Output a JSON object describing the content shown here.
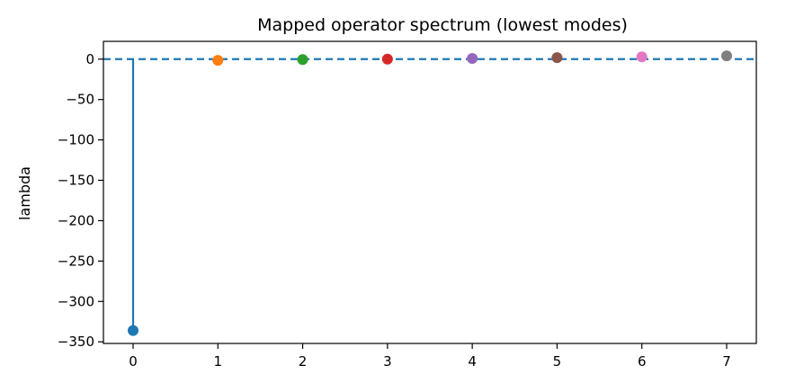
{
  "chart_data": {
    "type": "scatter",
    "title": "Mapped operator spectrum (lowest modes)",
    "xlabel": "",
    "ylabel": "lambda",
    "x": [
      0,
      1,
      2,
      3,
      4,
      5,
      6,
      7
    ],
    "values": [
      -336,
      -1.5,
      -0.5,
      0.0,
      0.8,
      1.8,
      2.8,
      4.0
    ],
    "point_colors": [
      "#1f77b4",
      "#ff7f0e",
      "#2ca02c",
      "#d62728",
      "#9467bd",
      "#8c564b",
      "#e377c2",
      "#7f7f7f"
    ],
    "stem": {
      "x": 0,
      "from": 0,
      "to": -336,
      "color": "#1f77b4"
    },
    "reference_line": {
      "y": 0,
      "style": "dashed",
      "color": "#1f77b4"
    },
    "xlim": [
      -0.35,
      7.35
    ],
    "ylim": [
      -352,
      22
    ],
    "xticks": [
      0,
      1,
      2,
      3,
      4,
      5,
      6,
      7
    ],
    "yticks": [
      0,
      -50,
      -100,
      -150,
      -200,
      -250,
      -300,
      -350
    ],
    "xtick_labels": [
      "0",
      "1",
      "2",
      "3",
      "4",
      "5",
      "6",
      "7"
    ],
    "ytick_labels": [
      "0",
      "−50",
      "−100",
      "−150",
      "−200",
      "−250",
      "−300",
      "−350"
    ],
    "grid": false,
    "legend": "none"
  }
}
